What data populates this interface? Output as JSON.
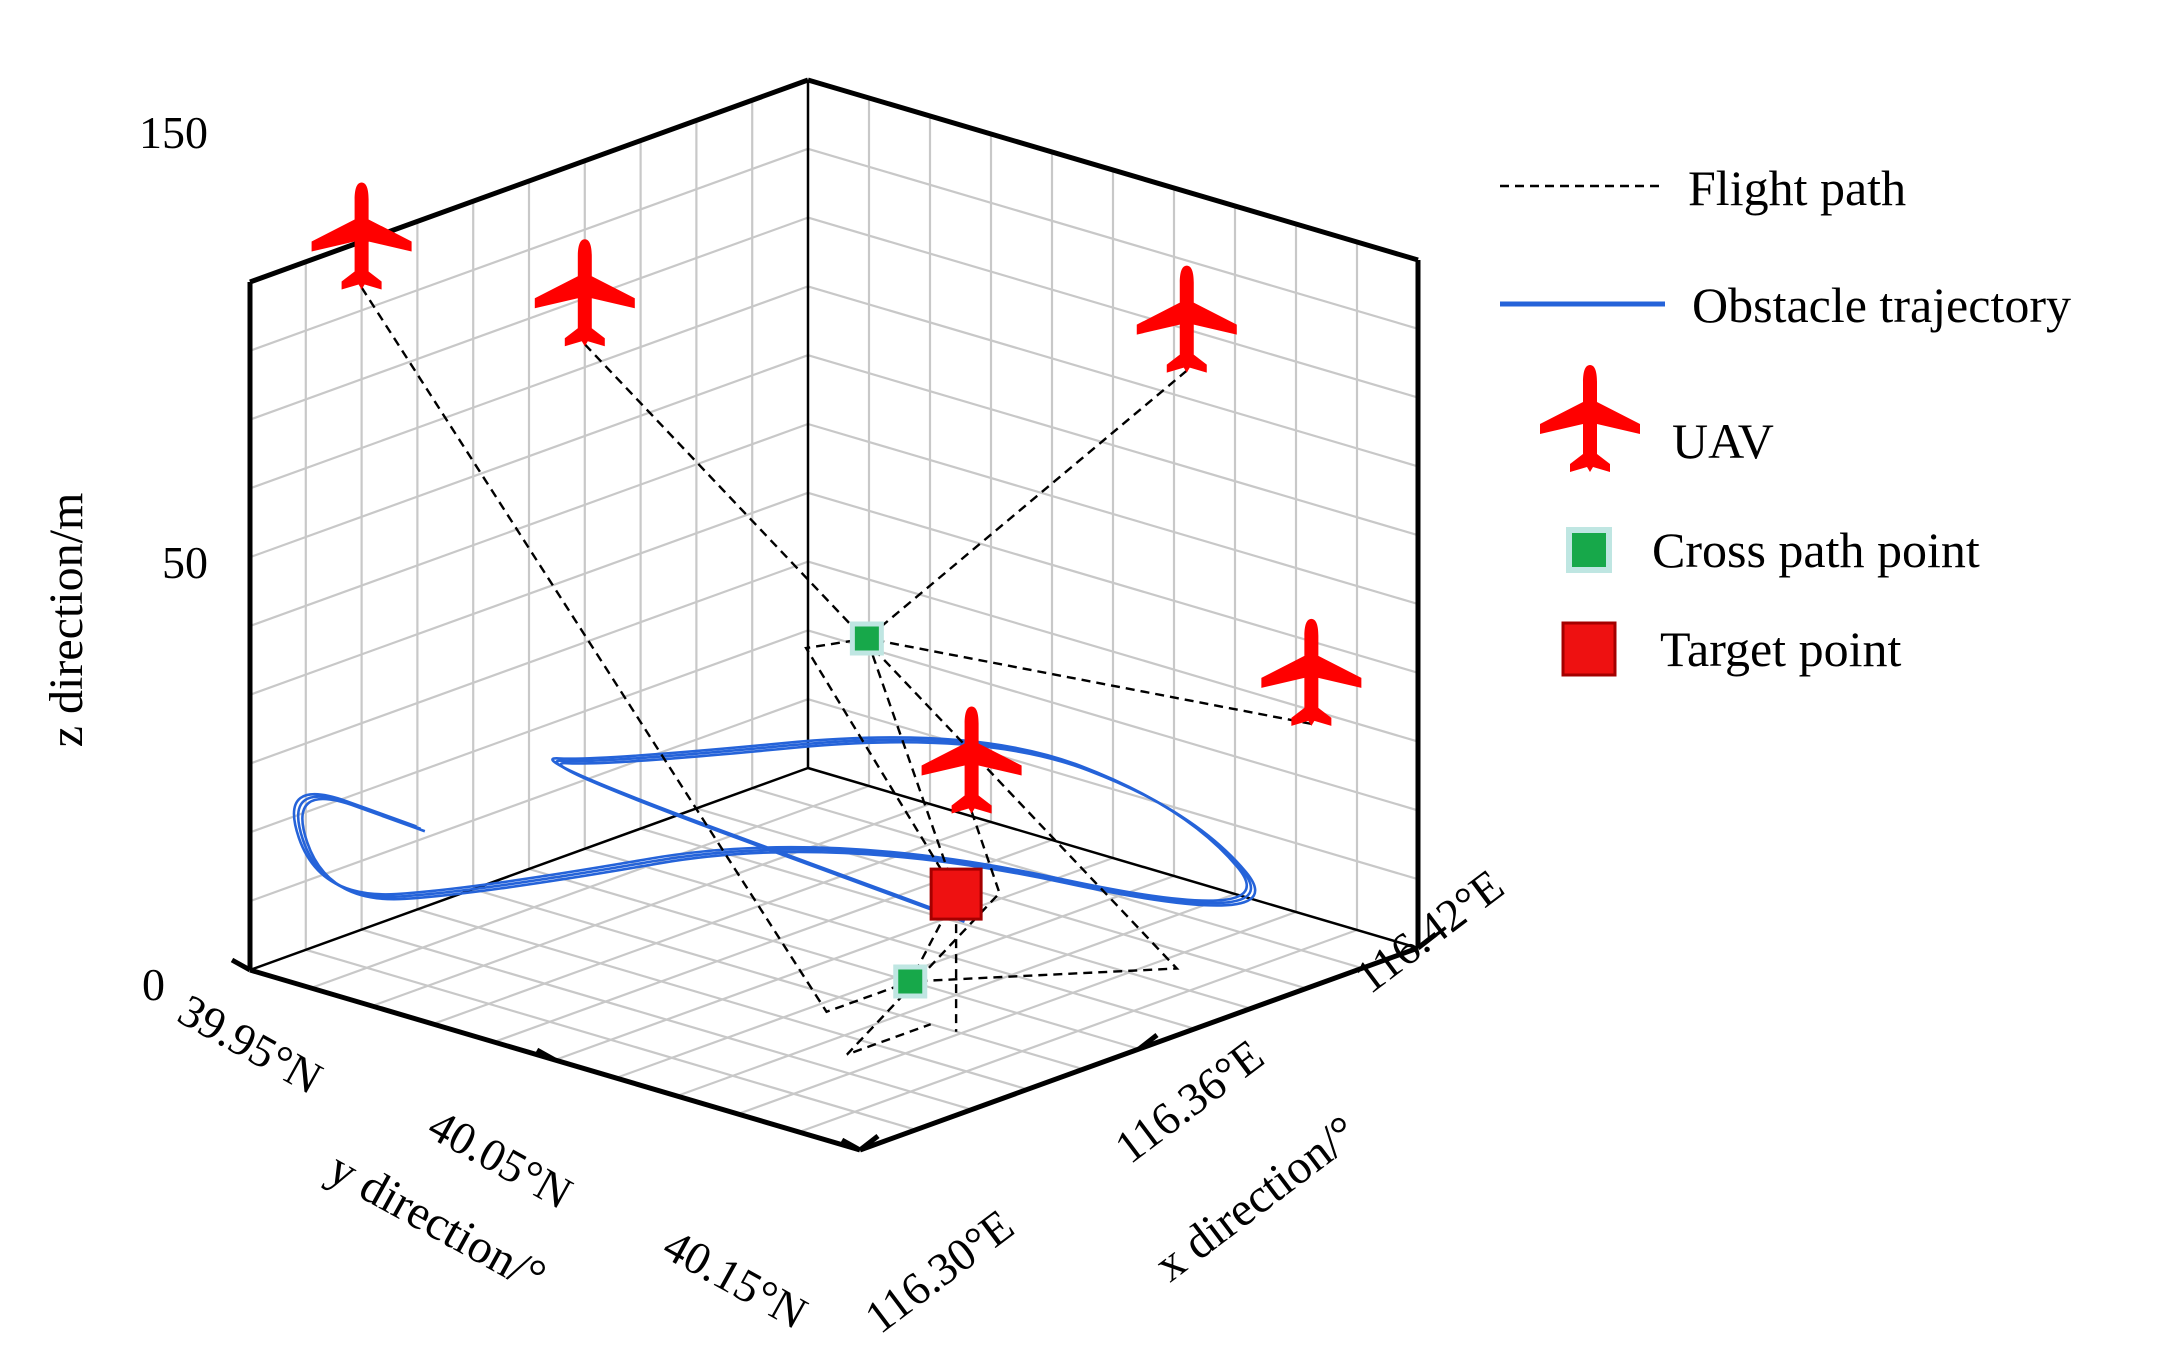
{
  "chart_data": {
    "type": "scatter",
    "view": "3d",
    "title": "",
    "zlabel": "z direction/m",
    "ylabel": "y direction/°",
    "xlabel": "x direction/°",
    "z_ticks": [
      "150",
      "50",
      "0"
    ],
    "y_ticks": [
      "39.95°N",
      "40.05°N",
      "40.15°N"
    ],
    "x_ticks": [
      "116.30°E",
      "116.36°E",
      "116.42°E"
    ],
    "zlim": [
      0,
      150
    ],
    "ylim": [
      39.95,
      40.15
    ],
    "xlim": [
      116.3,
      116.42
    ],
    "grid": true,
    "legend_position": "right",
    "legend": [
      {
        "label": "Flight path",
        "marker": "dashed-line",
        "color": "#000000"
      },
      {
        "label": "Obstacle trajectory",
        "marker": "solid-line",
        "color": "#2563d9"
      },
      {
        "label": "UAV",
        "marker": "plane-icon",
        "color": "#ff0000"
      },
      {
        "label": "Cross path point",
        "marker": "square",
        "color": "#17a84a"
      },
      {
        "label": "Target point",
        "marker": "square",
        "color": "#ee1111"
      }
    ],
    "colors": {
      "uav": "#ff0000",
      "flight_path": "#000000",
      "obstacle": "#2563d9",
      "cross_point": "#17a84a",
      "cross_point_halo": "#bfe6e2",
      "target": "#ee1111",
      "target_edge": "#a40000",
      "grid": "#c8c8c8"
    },
    "uavs": [
      {
        "x": 116.3,
        "y": 39.99,
        "z": 140
      },
      {
        "x": 116.3,
        "y": 40.07,
        "z": 110
      },
      {
        "x": 116.38,
        "y": 40.14,
        "z": 115
      },
      {
        "x": 116.41,
        "y": 40.13,
        "z": 50
      },
      {
        "x": 116.42,
        "y": 39.99,
        "z": 65
      }
    ],
    "cross_path_points": [
      {
        "x": 116.375,
        "y": 40.05,
        "z": 0
      },
      {
        "x": 116.35,
        "y": 40.08,
        "z": 60
      }
    ],
    "target_point": {
      "x": 116.395,
      "y": 40.03,
      "z": 30
    },
    "flight_paths": [
      [
        {
          "x": 116.3,
          "y": 39.99,
          "z": 140
        },
        {
          "x": 116.375,
          "y": 40.02,
          "z": 0
        },
        {
          "x": 116.375,
          "y": 40.05,
          "z": 0
        },
        {
          "x": 116.395,
          "y": 40.03,
          "z": 30
        }
      ],
      [
        {
          "x": 116.3,
          "y": 40.07,
          "z": 110
        },
        {
          "x": 116.4,
          "y": 40.1,
          "z": 0
        },
        {
          "x": 116.375,
          "y": 40.05,
          "z": 0
        }
      ],
      [
        {
          "x": 116.38,
          "y": 40.14,
          "z": 115
        },
        {
          "x": 116.35,
          "y": 40.08,
          "z": 60
        },
        {
          "x": 116.395,
          "y": 40.03,
          "z": 30
        }
      ],
      [
        {
          "x": 116.41,
          "y": 40.13,
          "z": 50
        },
        {
          "x": 116.35,
          "y": 40.08,
          "z": 60
        },
        {
          "x": 116.36,
          "y": 40.04,
          "z": 70
        },
        {
          "x": 116.395,
          "y": 40.03,
          "z": 30
        }
      ],
      [
        {
          "x": 116.42,
          "y": 39.99,
          "z": 65
        },
        {
          "x": 116.42,
          "y": 40.0,
          "z": 45
        },
        {
          "x": 116.39,
          "y": 40.0,
          "z": 0
        },
        {
          "x": 116.39,
          "y": 40.03,
          "z": 0
        }
      ],
      [
        {
          "x": 116.395,
          "y": 40.03,
          "z": 30
        },
        {
          "x": 116.395,
          "y": 40.03,
          "z": 0
        }
      ]
    ],
    "obstacle_trajectory": [
      {
        "x": 116.33,
        "y": 39.955,
        "z": 40
      },
      {
        "x": 116.3,
        "y": 39.96,
        "z": 40
      },
      {
        "x": 116.3,
        "y": 39.975,
        "z": 10
      },
      {
        "x": 116.3,
        "y": 40.03,
        "z": 0
      },
      {
        "x": 116.32,
        "y": 40.12,
        "z": 0
      },
      {
        "x": 116.4,
        "y": 40.14,
        "z": 0
      },
      {
        "x": 116.38,
        "y": 40.14,
        "z": 20
      },
      {
        "x": 116.36,
        "y": 40.1,
        "z": 40
      },
      {
        "x": 116.33,
        "y": 40.02,
        "z": 40
      },
      {
        "x": 116.32,
        "y": 40.01,
        "z": 40
      },
      {
        "x": 116.395,
        "y": 40.03,
        "z": 25
      }
    ]
  }
}
